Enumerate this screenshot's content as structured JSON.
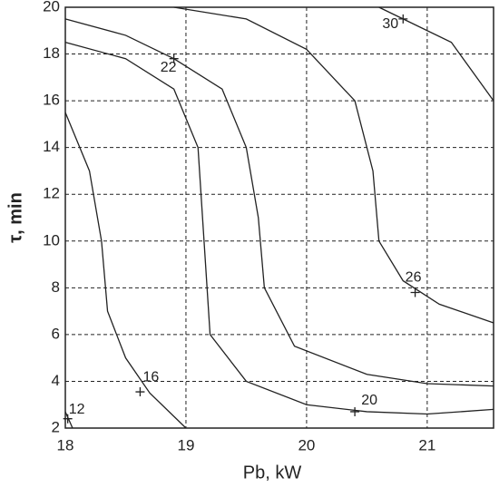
{
  "chart_data": {
    "type": "contour",
    "xlabel": "Pb, kW",
    "ylabel": "τ, min",
    "xlim": [
      18,
      21.55
    ],
    "ylim": [
      2,
      20
    ],
    "xticks": [
      18,
      19,
      20,
      21
    ],
    "yticks": [
      2,
      4,
      6,
      8,
      10,
      12,
      14,
      16,
      18,
      20
    ],
    "grid": true,
    "color": "#222222",
    "contours": [
      {
        "level": 12,
        "x": [
          18,
          18.06
        ],
        "y": [
          2.7,
          2.0
        ],
        "marker": [
          18.02,
          2.4
        ]
      },
      {
        "level": 16,
        "x": [
          18,
          18.2,
          18.3,
          18.35,
          18.5,
          18.7,
          19.0
        ],
        "y": [
          15.5,
          13,
          10,
          7,
          5,
          3.5,
          2.0
        ],
        "marker": [
          18.62,
          3.55
        ]
      },
      {
        "level": 20,
        "x": [
          18,
          18.5,
          18.9,
          19.1,
          19.15,
          19.2,
          19.5,
          20,
          20.5,
          21,
          21.55
        ],
        "y": [
          18.5,
          17.8,
          16.5,
          14,
          10,
          6,
          4,
          3,
          2.7,
          2.6,
          2.8
        ],
        "marker": [
          20.4,
          2.7
        ]
      },
      {
        "level": 22,
        "x": [
          18,
          18.5,
          18.9,
          19.3,
          19.5,
          19.6,
          19.65,
          19.9,
          20.5,
          21,
          21.55
        ],
        "y": [
          19.5,
          18.8,
          17.8,
          16.5,
          14,
          11,
          8,
          5.5,
          4.3,
          3.9,
          3.8
        ],
        "marker": [
          18.9,
          17.8
        ]
      },
      {
        "level": 26,
        "x": [
          18.9,
          19.5,
          20,
          20.4,
          20.55,
          20.6,
          20.8,
          21.1,
          21.55
        ],
        "y": [
          20,
          19.5,
          18.2,
          16,
          13,
          10,
          8.3,
          7.3,
          6.5
        ],
        "marker": [
          20.9,
          7.8
        ]
      },
      {
        "level": 30,
        "x": [
          20.6,
          20.8,
          21.2,
          21.55
        ],
        "y": [
          20,
          19.5,
          18.5,
          16
        ],
        "marker": [
          20.8,
          19.5
        ]
      }
    ]
  }
}
